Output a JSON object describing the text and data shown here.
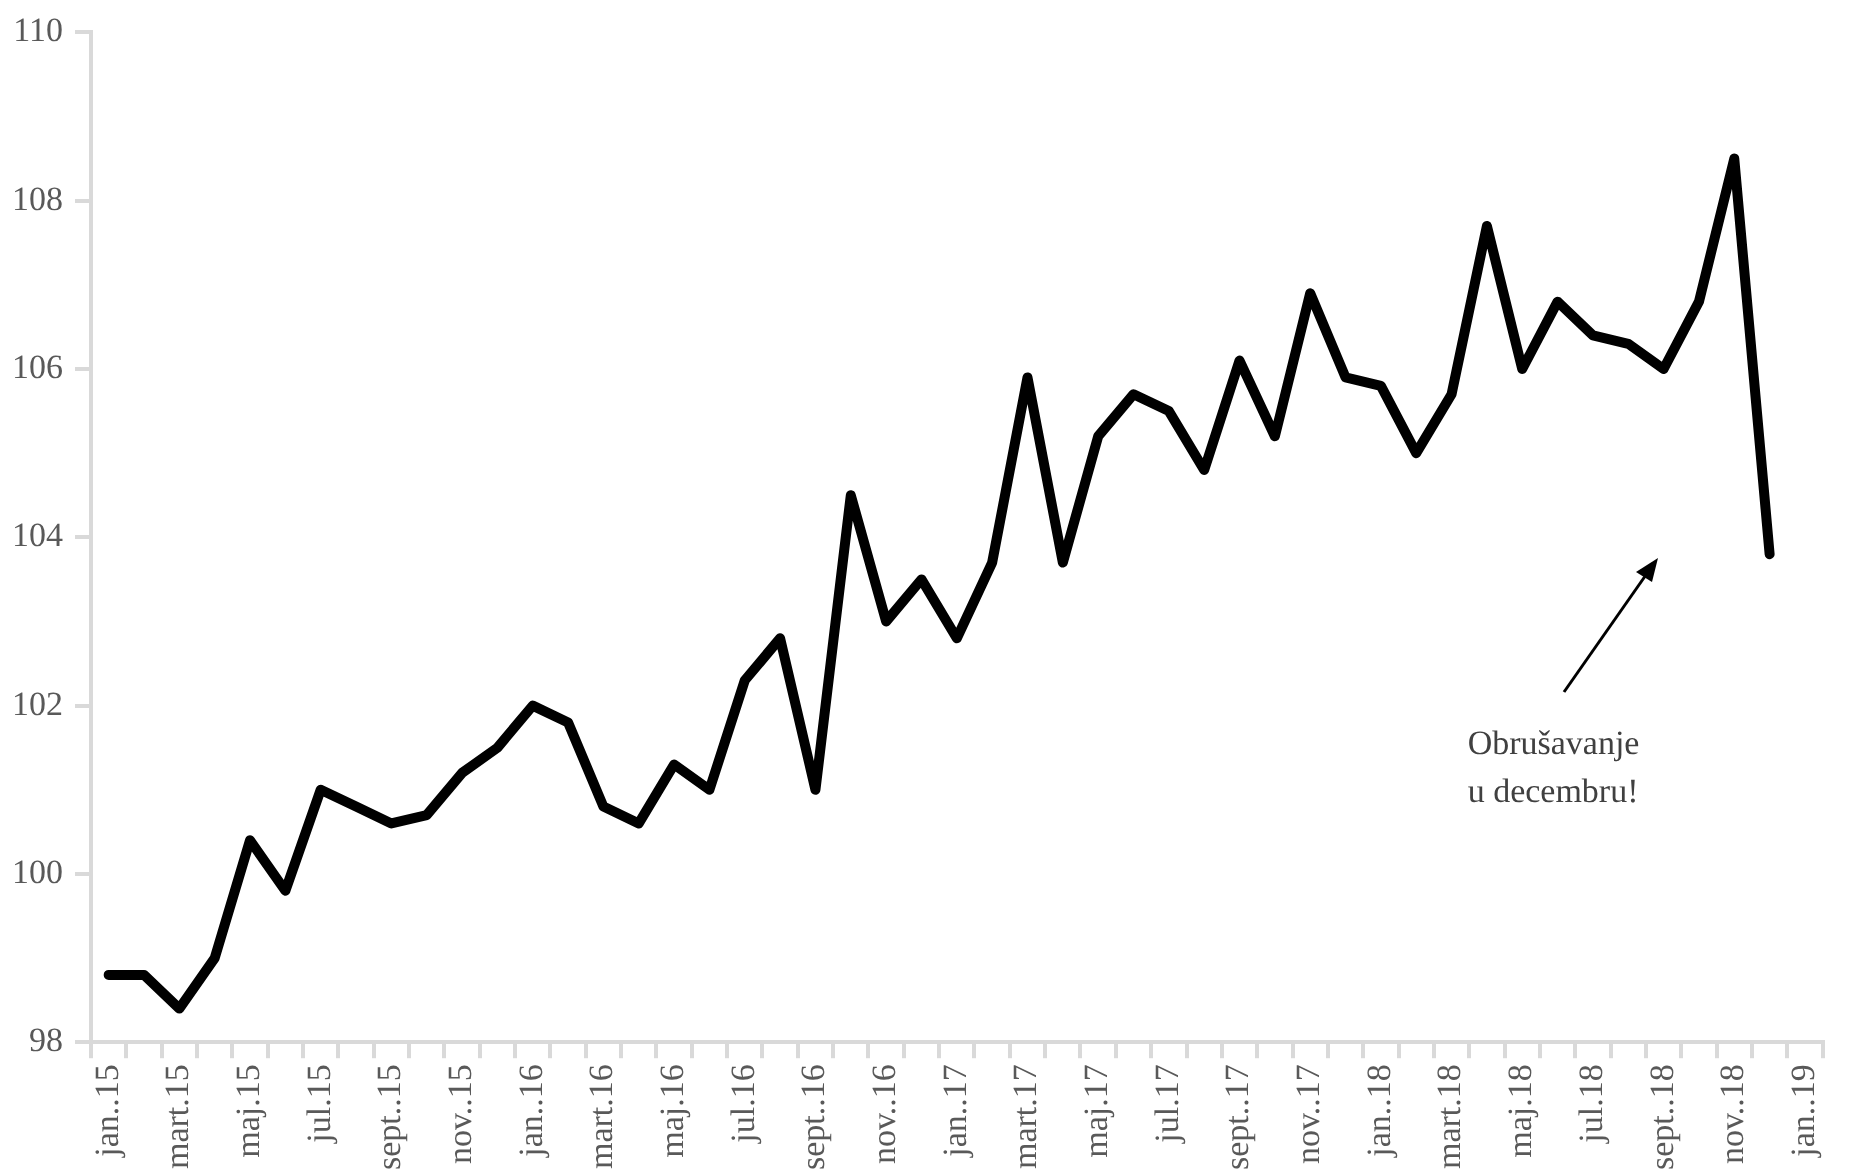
{
  "chart_data": {
    "type": "line",
    "categories": [
      "jan..15",
      null,
      "mart.15",
      null,
      "maj.15",
      null,
      "jul.15",
      null,
      "sept..15",
      null,
      "nov..15",
      null,
      "jan..16",
      null,
      "mart.16",
      null,
      "maj.16",
      null,
      "jul.16",
      null,
      "sept..16",
      null,
      "nov..16",
      null,
      "jan..17",
      null,
      "mart.17",
      null,
      "maj.17",
      null,
      "jul.17",
      null,
      "sept..17",
      null,
      "nov..17",
      null,
      "jan..18",
      null,
      "mart.18",
      null,
      "maj.18",
      null,
      "jul.18",
      null,
      "sept..18",
      null,
      "nov..18",
      null,
      "jan..19"
    ],
    "series": [
      {
        "color": "#000000",
        "values": [
          98.8,
          98.8,
          98.4,
          99.0,
          100.4,
          99.8,
          101.0,
          100.8,
          100.6,
          100.7,
          101.2,
          101.5,
          102.0,
          101.8,
          100.8,
          100.6,
          101.3,
          101.0,
          102.3,
          102.8,
          101.0,
          104.5,
          103.0,
          103.5,
          102.8,
          103.7,
          105.9,
          103.7,
          105.2,
          105.7,
          105.5,
          104.8,
          106.1,
          105.2,
          106.9,
          105.9,
          105.8,
          105.0,
          105.7,
          107.7,
          106.0,
          106.8,
          106.4,
          106.3,
          106.0,
          106.8,
          108.5,
          103.8,
          null
        ]
      }
    ],
    "ylim": [
      98,
      110
    ],
    "yticks": [
      98,
      100,
      102,
      104,
      106,
      108,
      110
    ],
    "grid": false,
    "marker": "none",
    "line_style": "solid",
    "annotations": [
      "Obrušavanje\nu decembru!"
    ]
  }
}
